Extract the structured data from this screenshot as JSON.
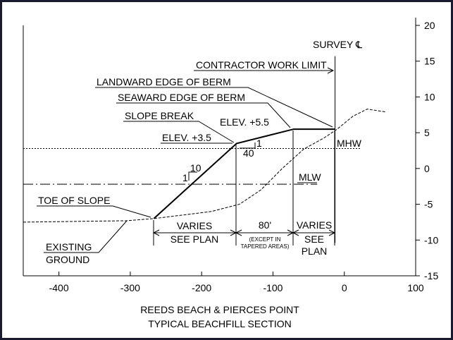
{
  "chart_data": {
    "type": "line",
    "title": "REEDS BEACH & PIERCES POINT",
    "subtitle": "TYPICAL BEACHFILL SECTION",
    "xlim": [
      -450,
      100
    ],
    "xticks": [
      -400,
      -300,
      -200,
      -100,
      0,
      100
    ],
    "ylim": [
      -15,
      20
    ],
    "yticks": [
      -15,
      -10,
      -5,
      0,
      5,
      10,
      15,
      20
    ],
    "series": [
      {
        "style": "dashed",
        "color": "#000000",
        "x": [
          -450,
          -305,
          -267,
          -226,
          -186,
          -147,
          -117,
          -87,
          -57,
          -28,
          -10,
          12,
          32,
          59
        ],
        "values": [
          -7.5,
          -7.3,
          -7,
          -6.5,
          -6,
          -5,
          -3,
          0,
          2.7,
          4.3,
          5.5,
          7.3,
          8.3,
          7.9
        ]
      },
      {
        "style": "solid",
        "color": "#000000",
        "x": [
          -267,
          -151,
          -71,
          -13
        ],
        "values": [
          -7,
          3.5,
          5.5,
          5.5
        ]
      },
      {
        "style": "dotted",
        "color": "#000000",
        "x": [
          -450,
          24
        ],
        "values": [
          2.8,
          2.8
        ]
      },
      {
        "style": "dashdot",
        "color": "#000000",
        "x": [
          -450,
          -38
        ],
        "values": [
          -2.2,
          -2.2
        ]
      },
      {
        "style": "thin",
        "color": "#000000",
        "x": [
          -13,
          -13
        ],
        "values": [
          15.7,
          -10.4
        ]
      }
    ],
    "annotations": [
      "SURVEY ℄",
      "CONTRACTOR WORK LIMIT",
      "LANDWARD EDGE OF BERM",
      "SEAWARD EDGE OF BERM",
      "SLOPE BREAK",
      "ELEV. +5.5",
      "ELEV. +3.5",
      "MHW",
      "MLW",
      "TOE OF SLOPE",
      "EXISTING",
      "GROUND",
      "10",
      "1",
      "40",
      "1"
    ],
    "dimensions": [
      "VARIES",
      "SEE PLAN",
      "80'",
      "(EXCEPT IN",
      "TAPERED AREAS)",
      "VARIES",
      "SEE",
      "PLAN"
    ]
  }
}
